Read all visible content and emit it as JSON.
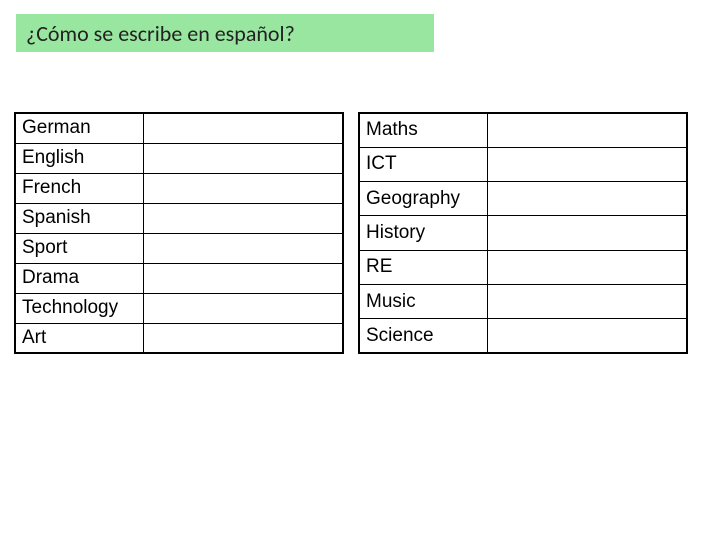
{
  "title": {
    "text": "¿Cómo se escribe en español?",
    "background_color": "#99e6a0",
    "font_color": "#222222"
  },
  "left_table": {
    "rows": [
      {
        "label": "German",
        "answer": ""
      },
      {
        "label": "English",
        "answer": ""
      },
      {
        "label": "French",
        "answer": ""
      },
      {
        "label": "Spanish",
        "answer": ""
      },
      {
        "label": "Sport",
        "answer": ""
      },
      {
        "label": "Drama",
        "answer": ""
      },
      {
        "label": "Technology",
        "answer": ""
      },
      {
        "label": "Art",
        "answer": ""
      }
    ]
  },
  "right_table": {
    "rows": [
      {
        "label": "Maths",
        "answer": ""
      },
      {
        "label": "ICT",
        "answer": ""
      },
      {
        "label": "Geography",
        "answer": ""
      },
      {
        "label": "History",
        "answer": ""
      },
      {
        "label": "RE",
        "answer": ""
      },
      {
        "label": "Music",
        "answer": ""
      },
      {
        "label": "Science",
        "answer": ""
      }
    ]
  },
  "styling": {
    "border_color": "#000000",
    "cell_font_size": 19,
    "title_font_size": 22
  }
}
